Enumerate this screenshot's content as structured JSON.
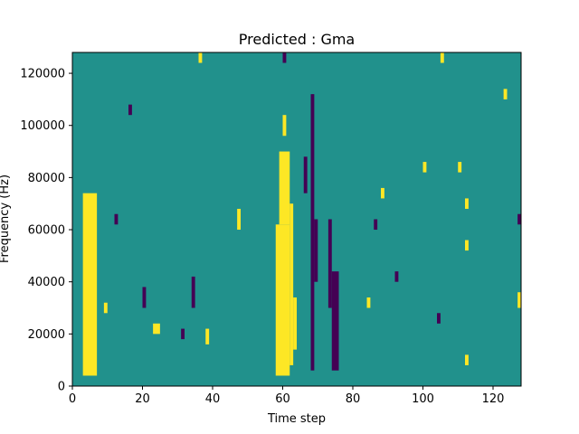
{
  "chart_data": {
    "type": "heatmap",
    "title": "Predicted : Gma",
    "xlabel": "Time step",
    "ylabel": "Frequency (Hz)",
    "xlim": [
      0,
      128
    ],
    "ylim": [
      0,
      128000
    ],
    "xticks": [
      0,
      20,
      40,
      60,
      80,
      100,
      120
    ],
    "yticks": [
      0,
      20000,
      40000,
      60000,
      80000,
      100000,
      120000
    ],
    "xtick_labels": [
      "0",
      "20",
      "40",
      "60",
      "80",
      "100",
      "120"
    ],
    "ytick_labels": [
      "0",
      "20000",
      "40000",
      "60000",
      "80000",
      "100000",
      "120000"
    ],
    "grid": false,
    "legend": "none",
    "colors": {
      "neutral": "#21918c",
      "high": "#fde725",
      "low": "#440154"
    },
    "rows": 64,
    "background_level": 0,
    "cells": [
      {
        "level": 1,
        "x0": 3,
        "x1": 7,
        "y0": 4000,
        "y1": 74000
      },
      {
        "level": 1,
        "x0": 58,
        "x1": 62,
        "y0": 4000,
        "y1": 62000
      },
      {
        "level": 1,
        "x0": 59,
        "x1": 62,
        "y0": 62000,
        "y1": 90000
      },
      {
        "level": 1,
        "x0": 62,
        "x1": 63,
        "y0": 8000,
        "y1": 70000
      },
      {
        "level": 1,
        "x0": 63,
        "x1": 64,
        "y0": 14000,
        "y1": 34000
      },
      {
        "level": 1,
        "x0": 60,
        "x1": 61,
        "y0": 96000,
        "y1": 104000
      },
      {
        "level": 1,
        "x0": 23,
        "x1": 25,
        "y0": 20000,
        "y1": 24000
      },
      {
        "level": 1,
        "x0": 9,
        "x1": 10,
        "y0": 28000,
        "y1": 32000
      },
      {
        "level": -1,
        "x0": 68,
        "x1": 69,
        "y0": 6000,
        "y1": 112000
      },
      {
        "level": -1,
        "x0": 74,
        "x1": 76,
        "y0": 6000,
        "y1": 44000
      },
      {
        "level": -1,
        "x0": 73,
        "x1": 74,
        "y0": 30000,
        "y1": 64000
      },
      {
        "level": -1,
        "x0": 69,
        "x1": 70,
        "y0": 40000,
        "y1": 64000
      },
      {
        "level": -1,
        "x0": 66,
        "x1": 67,
        "y0": 74000,
        "y1": 88000
      },
      {
        "level": -1,
        "x0": 34,
        "x1": 35,
        "y0": 30000,
        "y1": 42000
      },
      {
        "level": -1,
        "x0": 20,
        "x1": 21,
        "y0": 30000,
        "y1": 38000
      },
      {
        "level": 1,
        "x0": 123,
        "x1": 124,
        "y0": 110000,
        "y1": 114000
      },
      {
        "level": 1,
        "x0": 127,
        "x1": 128,
        "y0": 30000,
        "y1": 36000
      },
      {
        "level": -1,
        "x0": 127,
        "x1": 128,
        "y0": 62000,
        "y1": 66000
      },
      {
        "level": 1,
        "x0": 112,
        "x1": 113,
        "y0": 8000,
        "y1": 12000
      },
      {
        "level": 1,
        "x0": 112,
        "x1": 113,
        "y0": 68000,
        "y1": 72000
      },
      {
        "level": 1,
        "x0": 112,
        "x1": 113,
        "y0": 52000,
        "y1": 56000
      },
      {
        "level": 1,
        "x0": 110,
        "x1": 111,
        "y0": 82000,
        "y1": 86000
      },
      {
        "level": -1,
        "x0": 104,
        "x1": 105,
        "y0": 24000,
        "y1": 28000
      },
      {
        "level": 1,
        "x0": 100,
        "x1": 101,
        "y0": 82000,
        "y1": 86000
      },
      {
        "level": 1,
        "x0": 84,
        "x1": 85,
        "y0": 30000,
        "y1": 34000
      },
      {
        "level": 1,
        "x0": 88,
        "x1": 89,
        "y0": 72000,
        "y1": 76000
      },
      {
        "level": -1,
        "x0": 86,
        "x1": 87,
        "y0": 60000,
        "y1": 64000
      },
      {
        "level": -1,
        "x0": 92,
        "x1": 93,
        "y0": 40000,
        "y1": 44000
      },
      {
        "level": 1,
        "x0": 38,
        "x1": 39,
        "y0": 16000,
        "y1": 22000
      },
      {
        "level": -1,
        "x0": 31,
        "x1": 32,
        "y0": 18000,
        "y1": 22000
      },
      {
        "level": 1,
        "x0": 47,
        "x1": 48,
        "y0": 60000,
        "y1": 68000
      },
      {
        "level": -1,
        "x0": 12,
        "x1": 13,
        "y0": 62000,
        "y1": 66000
      },
      {
        "level": -1,
        "x0": 16,
        "x1": 17,
        "y0": 104000,
        "y1": 108000
      },
      {
        "level": 1,
        "x0": 36,
        "x1": 37,
        "y0": 124000,
        "y1": 128000
      },
      {
        "level": -1,
        "x0": 60,
        "x1": 61,
        "y0": 124000,
        "y1": 128000
      },
      {
        "level": 1,
        "x0": 105,
        "x1": 106,
        "y0": 124000,
        "y1": 128000
      }
    ]
  }
}
